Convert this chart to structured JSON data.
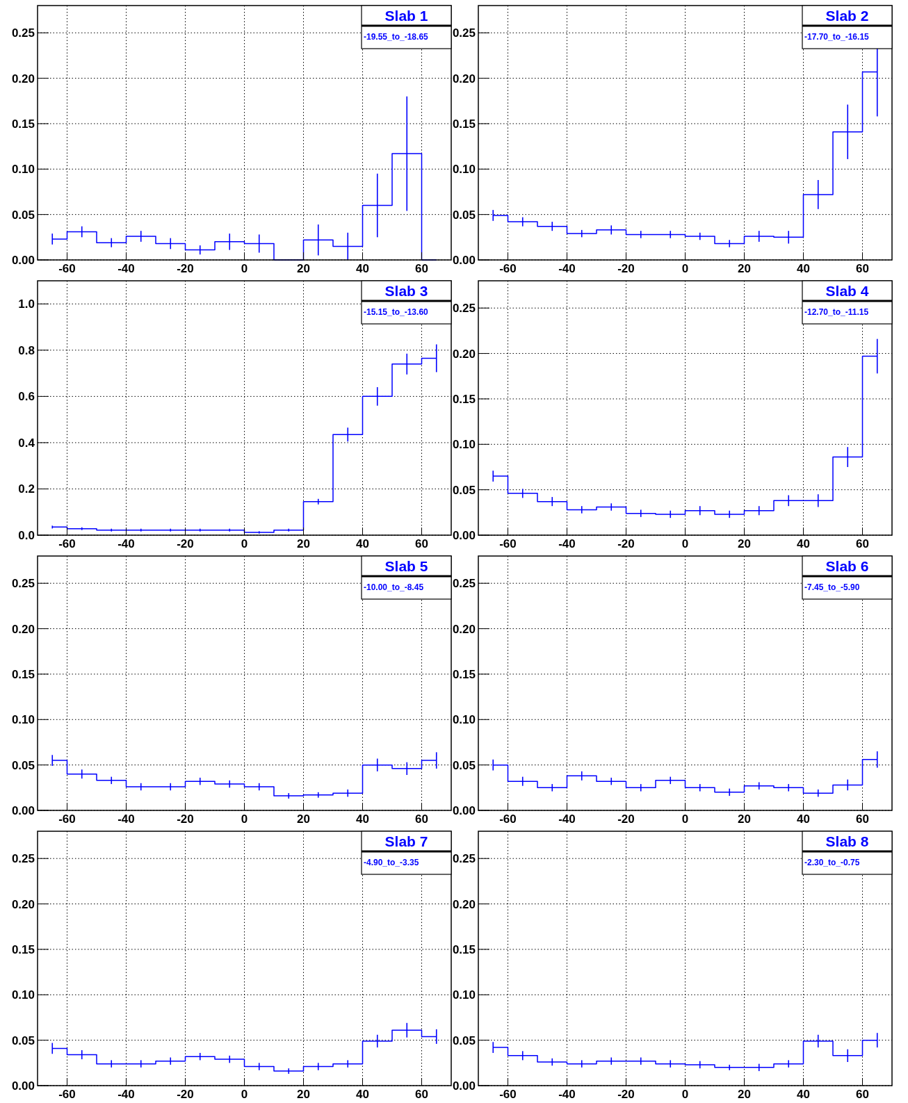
{
  "chart_data": [
    {
      "type": "step",
      "title": "Slab 1",
      "subtitle": "-19.55_to_-18.65",
      "x": [
        -65,
        -55,
        -45,
        -35,
        -25,
        -15,
        -5,
        5,
        15,
        25,
        35,
        45,
        55,
        65
      ],
      "values": [
        0.023,
        0.031,
        0.019,
        0.026,
        0.018,
        0.011,
        0.02,
        0.018,
        0,
        0.022,
        0.015,
        0.06,
        0.117,
        0
      ],
      "errors": [
        0.006,
        0.006,
        0.005,
        0.006,
        0.006,
        0.005,
        0.009,
        0.01,
        null,
        0.017,
        0.015,
        0.035,
        0.063,
        null
      ],
      "color": "#0000ff",
      "xlim": [
        -70,
        70
      ],
      "ylim": [
        0,
        0.28
      ],
      "xticks": [
        -60,
        -40,
        -20,
        0,
        20,
        40,
        60
      ],
      "yticks": [
        {
          "value": 0,
          "label": "0.00"
        },
        0.05,
        {
          "value": 0.1,
          "label": "0.10"
        },
        0.15,
        {
          "value": 0.2,
          "label": "0.20"
        },
        0.25
      ],
      "grid": true
    },
    {
      "type": "step",
      "title": "Slab 2",
      "subtitle": "-17.70_to_-16.15",
      "x": [
        -65,
        -55,
        -45,
        -35,
        -25,
        -15,
        -5,
        5,
        15,
        25,
        35,
        45,
        55,
        65
      ],
      "values": [
        0.049,
        0.042,
        0.037,
        0.029,
        0.033,
        0.028,
        0.028,
        0.026,
        0.018,
        0.026,
        0.025,
        0.072,
        0.141,
        0.207
      ],
      "errors": [
        0.006,
        0.005,
        0.005,
        0.004,
        0.005,
        0.004,
        0.004,
        0.004,
        0.004,
        0.006,
        0.007,
        0.016,
        0.03,
        0.049
      ],
      "color": "#0000ff",
      "xlim": [
        -70,
        70
      ],
      "ylim": [
        0,
        0.28
      ],
      "xticks": [
        -60,
        -40,
        -20,
        0,
        20,
        40,
        60
      ],
      "yticks": [
        {
          "value": 0,
          "label": "0.00"
        },
        0.05,
        {
          "value": 0.1,
          "label": "0.10"
        },
        0.15,
        {
          "value": 0.2,
          "label": "0.20"
        },
        0.25
      ],
      "grid": true
    },
    {
      "type": "step",
      "title": "Slab 3",
      "subtitle": "-15.15_to_-13.60",
      "x": [
        -65,
        -55,
        -45,
        -35,
        -25,
        -15,
        -5,
        5,
        15,
        25,
        35,
        45,
        55,
        65
      ],
      "values": [
        0.035,
        0.028,
        0.022,
        0.022,
        0.022,
        0.022,
        0.022,
        0.012,
        0.022,
        0.145,
        0.435,
        0.6,
        0.74,
        0.765
      ],
      "errors": [
        0.006,
        0.006,
        0.006,
        0.006,
        0.006,
        0.006,
        0.006,
        0.005,
        0.006,
        0.012,
        0.03,
        0.04,
        0.045,
        0.06
      ],
      "color": "#0000ff",
      "xlim": [
        -70,
        70
      ],
      "ylim": [
        0,
        1.1
      ],
      "xticks": [
        -60,
        -40,
        -20,
        0,
        20,
        40,
        60
      ],
      "yticks": [
        {
          "value": 0,
          "label": "0.0"
        },
        0.2,
        0.4,
        0.6,
        0.8,
        {
          "value": 1,
          "label": "1.0"
        }
      ],
      "grid": true
    },
    {
      "type": "step",
      "title": "Slab 4",
      "subtitle": "-12.70_to_-11.15",
      "x": [
        -65,
        -55,
        -45,
        -35,
        -25,
        -15,
        -5,
        5,
        15,
        25,
        35,
        45,
        55,
        65
      ],
      "values": [
        0.065,
        0.046,
        0.037,
        0.028,
        0.031,
        0.024,
        0.023,
        0.027,
        0.023,
        0.027,
        0.038,
        0.038,
        0.086,
        0.197
      ],
      "errors": [
        0.006,
        0.005,
        0.005,
        0.004,
        0.004,
        0.004,
        0.004,
        0.005,
        0.004,
        0.005,
        0.006,
        0.007,
        0.011,
        0.019
      ],
      "color": "#0000ff",
      "xlim": [
        -70,
        70
      ],
      "ylim": [
        0,
        0.28
      ],
      "xticks": [
        -60,
        -40,
        -20,
        0,
        20,
        40,
        60
      ],
      "yticks": [
        {
          "value": 0,
          "label": "0.00"
        },
        0.05,
        {
          "value": 0.1,
          "label": "0.10"
        },
        0.15,
        {
          "value": 0.2,
          "label": "0.20"
        },
        0.25
      ],
      "grid": true
    },
    {
      "type": "step",
      "title": "Slab 5",
      "subtitle": "-10.00_to_-8.45",
      "x": [
        -65,
        -55,
        -45,
        -35,
        -25,
        -15,
        -5,
        5,
        15,
        25,
        35,
        45,
        55,
        65
      ],
      "values": [
        0.055,
        0.04,
        0.033,
        0.026,
        0.026,
        0.032,
        0.029,
        0.026,
        0.016,
        0.017,
        0.019,
        0.05,
        0.046,
        0.055
      ],
      "errors": [
        0.006,
        0.005,
        0.004,
        0.004,
        0.004,
        0.004,
        0.004,
        0.004,
        0.003,
        0.003,
        0.004,
        0.007,
        0.007,
        0.009
      ],
      "color": "#0000ff",
      "xlim": [
        -70,
        70
      ],
      "ylim": [
        0,
        0.28
      ],
      "xticks": [
        -60,
        -40,
        -20,
        0,
        20,
        40,
        60
      ],
      "yticks": [
        {
          "value": 0,
          "label": "0.00"
        },
        0.05,
        {
          "value": 0.1,
          "label": "0.10"
        },
        0.15,
        {
          "value": 0.2,
          "label": "0.20"
        },
        0.25
      ],
      "grid": true
    },
    {
      "type": "step",
      "title": "Slab 6",
      "subtitle": "-7.45_to_-5.90",
      "x": [
        -65,
        -55,
        -45,
        -35,
        -25,
        -15,
        -5,
        5,
        15,
        25,
        35,
        45,
        55,
        65
      ],
      "values": [
        0.05,
        0.032,
        0.025,
        0.038,
        0.032,
        0.025,
        0.033,
        0.025,
        0.02,
        0.027,
        0.025,
        0.019,
        0.028,
        0.056
      ],
      "errors": [
        0.006,
        0.005,
        0.004,
        0.005,
        0.004,
        0.004,
        0.004,
        0.004,
        0.004,
        0.004,
        0.004,
        0.004,
        0.006,
        0.009
      ],
      "color": "#0000ff",
      "xlim": [
        -70,
        70
      ],
      "ylim": [
        0,
        0.28
      ],
      "xticks": [
        -60,
        -40,
        -20,
        0,
        20,
        40,
        60
      ],
      "yticks": [
        {
          "value": 0,
          "label": "0.00"
        },
        0.05,
        {
          "value": 0.1,
          "label": "0.10"
        },
        0.15,
        {
          "value": 0.2,
          "label": "0.20"
        },
        0.25
      ],
      "grid": true
    },
    {
      "type": "step",
      "title": "Slab 7",
      "subtitle": "-4.90_to_-3.35",
      "x": [
        -65,
        -55,
        -45,
        -35,
        -25,
        -15,
        -5,
        5,
        15,
        25,
        35,
        45,
        55,
        65
      ],
      "values": [
        0.041,
        0.034,
        0.024,
        0.024,
        0.027,
        0.032,
        0.029,
        0.021,
        0.016,
        0.021,
        0.024,
        0.049,
        0.061,
        0.054
      ],
      "errors": [
        0.006,
        0.005,
        0.004,
        0.004,
        0.004,
        0.004,
        0.004,
        0.004,
        0.003,
        0.004,
        0.004,
        0.007,
        0.008,
        0.008
      ],
      "color": "#0000ff",
      "xlim": [
        -70,
        70
      ],
      "ylim": [
        0,
        0.28
      ],
      "xticks": [
        -60,
        -40,
        -20,
        0,
        20,
        40,
        60
      ],
      "yticks": [
        {
          "value": 0,
          "label": "0.00"
        },
        0.05,
        {
          "value": 0.1,
          "label": "0.10"
        },
        0.15,
        {
          "value": 0.2,
          "label": "0.20"
        },
        0.25
      ],
      "grid": true
    },
    {
      "type": "step",
      "title": "Slab 8",
      "subtitle": "-2.30_to_-0.75",
      "x": [
        -65,
        -55,
        -45,
        -35,
        -25,
        -15,
        -5,
        5,
        15,
        25,
        35,
        45,
        55,
        65
      ],
      "values": [
        0.042,
        0.033,
        0.026,
        0.024,
        0.027,
        0.027,
        0.024,
        0.023,
        0.02,
        0.02,
        0.024,
        0.049,
        0.033,
        0.05
      ],
      "errors": [
        0.006,
        0.005,
        0.004,
        0.004,
        0.004,
        0.004,
        0.004,
        0.004,
        0.003,
        0.004,
        0.004,
        0.007,
        0.007,
        0.008
      ],
      "color": "#0000ff",
      "xlim": [
        -70,
        70
      ],
      "ylim": [
        0,
        0.28
      ],
      "xticks": [
        -60,
        -40,
        -20,
        0,
        20,
        40,
        60
      ],
      "yticks": [
        {
          "value": 0,
          "label": "0.00"
        },
        0.05,
        {
          "value": 0.1,
          "label": "0.10"
        },
        0.15,
        {
          "value": 0.2,
          "label": "0.20"
        },
        0.25
      ],
      "grid": true
    }
  ]
}
